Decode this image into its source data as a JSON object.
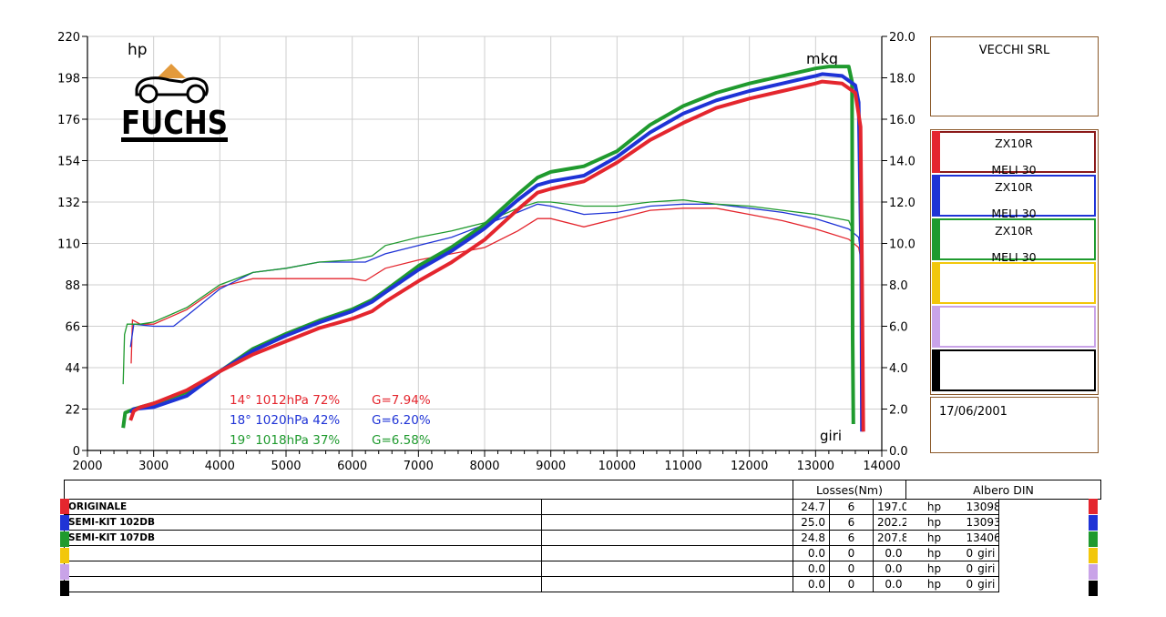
{
  "chart_data": {
    "type": "line",
    "x_axis": {
      "min": 2000,
      "max": 14000,
      "ticks": [
        2000,
        3000,
        4000,
        5000,
        6000,
        7000,
        8000,
        9000,
        10000,
        11000,
        12000,
        13000,
        14000
      ]
    },
    "y_left": {
      "label": "hp",
      "min": 0,
      "max": 220,
      "ticks": [
        0,
        22,
        44,
        66,
        88,
        110,
        132,
        154,
        176,
        198,
        220
      ]
    },
    "y_right": {
      "label": "mkg",
      "min": 0,
      "max": 20,
      "ticks": [
        "0.0",
        "2.0",
        "4.0",
        "6.0",
        "8.0",
        "10.0",
        "12.0",
        "14.0",
        "16.0",
        "18.0",
        "20.0"
      ]
    },
    "x_unit_label": "giri",
    "grid": true,
    "series": [
      {
        "color": "#e4262e",
        "power": [
          [
            2650,
            16
          ],
          [
            2700,
            21
          ],
          [
            2800,
            23
          ],
          [
            3000,
            25
          ],
          [
            3500,
            32
          ],
          [
            4000,
            42
          ],
          [
            4500,
            51
          ],
          [
            5000,
            58
          ],
          [
            5500,
            65
          ],
          [
            6000,
            70
          ],
          [
            6300,
            74
          ],
          [
            6500,
            79
          ],
          [
            7000,
            90
          ],
          [
            7500,
            100
          ],
          [
            8000,
            112
          ],
          [
            8500,
            128
          ],
          [
            8800,
            137
          ],
          [
            9000,
            139
          ],
          [
            9500,
            143
          ],
          [
            10000,
            153
          ],
          [
            10500,
            165
          ],
          [
            11000,
            174
          ],
          [
            11500,
            182
          ],
          [
            12000,
            187
          ],
          [
            12500,
            191
          ],
          [
            13000,
            195
          ],
          [
            13100,
            196
          ],
          [
            13400,
            195
          ],
          [
            13600,
            190
          ],
          [
            13680,
            172
          ],
          [
            13700,
            100
          ],
          [
            13720,
            10
          ]
        ],
        "torque": [
          [
            2660,
            4.2
          ],
          [
            2680,
            6.3
          ],
          [
            2800,
            6.1
          ],
          [
            3000,
            6.1
          ],
          [
            3500,
            6.8
          ],
          [
            4000,
            7.9
          ],
          [
            4500,
            8.3
          ],
          [
            5000,
            8.3
          ],
          [
            5500,
            8.3
          ],
          [
            6000,
            8.3
          ],
          [
            6200,
            8.2
          ],
          [
            6500,
            8.8
          ],
          [
            7000,
            9.2
          ],
          [
            7500,
            9.5
          ],
          [
            8000,
            9.8
          ],
          [
            8500,
            10.6
          ],
          [
            8800,
            11.2
          ],
          [
            9000,
            11.2
          ],
          [
            9500,
            10.8
          ],
          [
            10000,
            11.2
          ],
          [
            10500,
            11.6
          ],
          [
            11000,
            11.7
          ],
          [
            11500,
            11.7
          ],
          [
            12000,
            11.4
          ],
          [
            12500,
            11.1
          ],
          [
            13000,
            10.7
          ],
          [
            13500,
            10.2
          ],
          [
            13650,
            9.8
          ],
          [
            13700,
            9.0
          ],
          [
            13720,
            1.0
          ]
        ]
      },
      {
        "color": "#1f33d6",
        "power": [
          [
            2650,
            20
          ],
          [
            2700,
            22
          ],
          [
            3000,
            23
          ],
          [
            3500,
            29
          ],
          [
            4000,
            42
          ],
          [
            4500,
            53
          ],
          [
            5000,
            61
          ],
          [
            5500,
            68
          ],
          [
            6000,
            74
          ],
          [
            6300,
            79
          ],
          [
            6500,
            84
          ],
          [
            7000,
            96
          ],
          [
            7500,
            106
          ],
          [
            8000,
            118
          ],
          [
            8500,
            133
          ],
          [
            8800,
            141
          ],
          [
            9000,
            143
          ],
          [
            9500,
            146
          ],
          [
            10000,
            156
          ],
          [
            10500,
            169
          ],
          [
            11000,
            179
          ],
          [
            11500,
            186
          ],
          [
            12000,
            191
          ],
          [
            12500,
            195
          ],
          [
            13000,
            199
          ],
          [
            13100,
            200
          ],
          [
            13400,
            199
          ],
          [
            13600,
            194
          ],
          [
            13650,
            185
          ],
          [
            13690,
            100
          ],
          [
            13700,
            10
          ]
        ],
        "torque": [
          [
            2650,
            5.0
          ],
          [
            2700,
            6.1
          ],
          [
            3000,
            6.0
          ],
          [
            3300,
            6.0
          ],
          [
            3500,
            6.5
          ],
          [
            4000,
            7.8
          ],
          [
            4500,
            8.6
          ],
          [
            5000,
            8.8
          ],
          [
            5500,
            9.1
          ],
          [
            6000,
            9.1
          ],
          [
            6200,
            9.1
          ],
          [
            6500,
            9.5
          ],
          [
            7000,
            9.9
          ],
          [
            7500,
            10.3
          ],
          [
            8000,
            10.9
          ],
          [
            8500,
            11.5
          ],
          [
            8800,
            11.9
          ],
          [
            9000,
            11.8
          ],
          [
            9500,
            11.4
          ],
          [
            10000,
            11.5
          ],
          [
            10500,
            11.8
          ],
          [
            11000,
            11.9
          ],
          [
            11500,
            11.9
          ],
          [
            12000,
            11.7
          ],
          [
            12500,
            11.5
          ],
          [
            13000,
            11.2
          ],
          [
            13500,
            10.7
          ],
          [
            13650,
            10.3
          ],
          [
            13700,
            9.0
          ],
          [
            13710,
            1.0
          ]
        ]
      },
      {
        "color": "#1f9a2e",
        "power": [
          [
            2540,
            12
          ],
          [
            2570,
            20
          ],
          [
            2700,
            22
          ],
          [
            3000,
            25
          ],
          [
            3500,
            31
          ],
          [
            4000,
            42
          ],
          [
            4500,
            54
          ],
          [
            5000,
            62
          ],
          [
            5500,
            69
          ],
          [
            6000,
            75
          ],
          [
            6300,
            80
          ],
          [
            6500,
            85
          ],
          [
            7000,
            98
          ],
          [
            7500,
            108
          ],
          [
            8000,
            120
          ],
          [
            8500,
            136
          ],
          [
            8800,
            145
          ],
          [
            9000,
            148
          ],
          [
            9500,
            151
          ],
          [
            10000,
            159
          ],
          [
            10500,
            173
          ],
          [
            11000,
            183
          ],
          [
            11500,
            190
          ],
          [
            12000,
            195
          ],
          [
            12500,
            199
          ],
          [
            13000,
            203
          ],
          [
            13200,
            204
          ],
          [
            13500,
            204
          ],
          [
            13550,
            196
          ],
          [
            13560,
            60
          ],
          [
            13570,
            14
          ]
        ],
        "torque": [
          [
            2540,
            3.2
          ],
          [
            2560,
            5.6
          ],
          [
            2600,
            6.1
          ],
          [
            2800,
            6.1
          ],
          [
            3000,
            6.2
          ],
          [
            3500,
            6.9
          ],
          [
            4000,
            8.0
          ],
          [
            4500,
            8.6
          ],
          [
            5000,
            8.8
          ],
          [
            5500,
            9.1
          ],
          [
            6000,
            9.2
          ],
          [
            6300,
            9.4
          ],
          [
            6500,
            9.9
          ],
          [
            7000,
            10.3
          ],
          [
            7500,
            10.6
          ],
          [
            8000,
            11.0
          ],
          [
            8500,
            11.7
          ],
          [
            8800,
            12.0
          ],
          [
            9000,
            12.0
          ],
          [
            9500,
            11.8
          ],
          [
            10000,
            11.8
          ],
          [
            10500,
            12.0
          ],
          [
            11000,
            12.1
          ],
          [
            11500,
            11.9
          ],
          [
            12000,
            11.8
          ],
          [
            12500,
            11.6
          ],
          [
            13000,
            11.4
          ],
          [
            13500,
            11.1
          ],
          [
            13540,
            10.8
          ],
          [
            13560,
            1.4
          ]
        ]
      }
    ],
    "conditions": [
      {
        "text": "14°  1012hPa  72%",
        "g": "G=7.94%",
        "color": "#e4262e"
      },
      {
        "text": "18°  1020hPa  42%",
        "g": "G=6.20%",
        "color": "#1f33d6"
      },
      {
        "text": "19°  1018hPa  37%",
        "g": "G=6.58%",
        "color": "#1f9a2e"
      }
    ]
  },
  "logo": {
    "text": "FUCHS"
  },
  "panel": {
    "company": "VECCHI SRL",
    "date": "17/06/2001",
    "legend": [
      {
        "line1": "ZX10R",
        "line2": "MELI 30",
        "color": "#e4262e",
        "border": "#8b1a1a"
      },
      {
        "line1": "ZX10R",
        "line2": "MELI 30",
        "color": "#1f33d6",
        "border": "#1f33d6"
      },
      {
        "line1": "ZX10R",
        "line2": "MELI 30",
        "color": "#1f9a2e",
        "border": "#1f9a2e"
      },
      {
        "line1": "",
        "line2": "",
        "color": "#f2c70b",
        "border": "#f2c70b"
      },
      {
        "line1": "",
        "line2": "",
        "color": "#c9a3e8",
        "border": "#c9a3e8"
      },
      {
        "line1": "",
        "line2": "",
        "color": "#000000",
        "border": "#000000"
      }
    ]
  },
  "results": {
    "header_losses": "Losses(Nm)",
    "header_albero": "Albero DIN",
    "rows": [
      {
        "name": "ORIGINALE",
        "loss": "24.7",
        "n": "6",
        "power": "197.0",
        "unit": "hp",
        "rpm": "13098",
        "rpm_unit": "giri",
        "color": "#e4262e"
      },
      {
        "name": "SEMI-KIT 102DB",
        "loss": "25.0",
        "n": "6",
        "power": "202.2",
        "unit": "hp",
        "rpm": "13093",
        "rpm_unit": "giri",
        "color": "#1f33d6"
      },
      {
        "name": "SEMI-KIT 107DB",
        "loss": "24.8",
        "n": "6",
        "power": "207.8",
        "unit": "hp",
        "rpm": "13406",
        "rpm_unit": "giri",
        "color": "#1f9a2e"
      },
      {
        "name": "",
        "loss": "0.0",
        "n": "0",
        "power": "0.0",
        "unit": "hp",
        "rpm": "0",
        "rpm_unit": "giri",
        "color": "#f2c70b"
      },
      {
        "name": "",
        "loss": "0.0",
        "n": "0",
        "power": "0.0",
        "unit": "hp",
        "rpm": "0",
        "rpm_unit": "giri",
        "color": "#c9a3e8"
      },
      {
        "name": "",
        "loss": "0.0",
        "n": "0",
        "power": "0.0",
        "unit": "hp",
        "rpm": "0",
        "rpm_unit": "giri",
        "color": "#000000"
      }
    ]
  }
}
